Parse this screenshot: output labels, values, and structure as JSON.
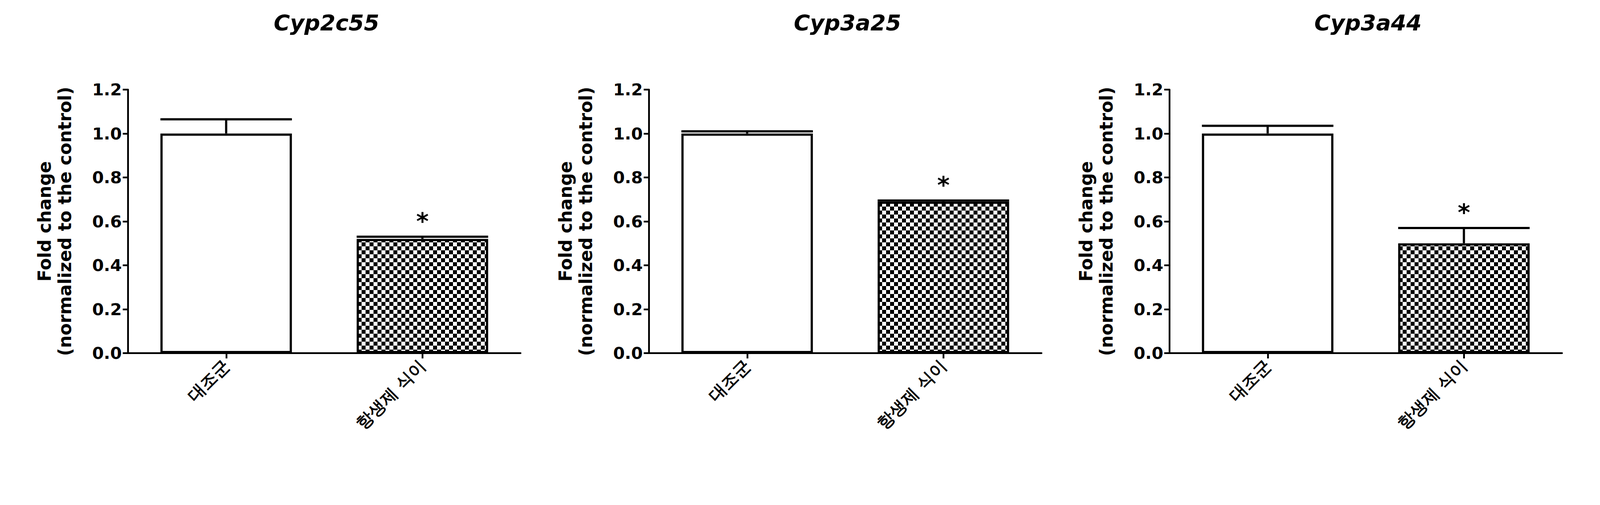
{
  "chart_data": [
    {
      "type": "bar",
      "title": "Cyp2c55",
      "ylabel": "Fold change\n(normalized to the control)",
      "categories": [
        "대조군",
        "항생제 식이"
      ],
      "values": [
        1.0,
        0.52
      ],
      "errors": [
        0.065,
        0.01
      ],
      "colors": [
        "#ffffff",
        "#000000"
      ],
      "ylim": [
        0,
        1.2
      ],
      "yticks": [
        {
          "value": 0,
          "label": "0.0"
        },
        {
          "value": 0.2,
          "label": "0.2"
        },
        {
          "value": 0.4,
          "label": "0.4"
        },
        {
          "value": 0.6,
          "label": "0.6"
        },
        {
          "value": 0.8,
          "label": "0.8"
        },
        {
          "value": 1.0,
          "label": "1.0"
        },
        {
          "value": 1.2,
          "label": "1.2"
        }
      ],
      "grid": false,
      "annotations": [
        {
          "category": "항생제 식이",
          "text": "*"
        }
      ]
    },
    {
      "type": "bar",
      "title": "Cyp3a25",
      "ylabel": "Fold change\n(normalized to the control)",
      "categories": [
        "대조군",
        "항생제 식이"
      ],
      "values": [
        1.0,
        0.69
      ],
      "errors": [
        0.01,
        0.005
      ],
      "colors": [
        "#ffffff",
        "#000000"
      ],
      "ylim": [
        0,
        1.2
      ],
      "yticks": [
        {
          "value": 0,
          "label": "0.0"
        },
        {
          "value": 0.2,
          "label": "0.2"
        },
        {
          "value": 0.4,
          "label": "0.4"
        },
        {
          "value": 0.6,
          "label": "0.6"
        },
        {
          "value": 0.8,
          "label": "0.8"
        },
        {
          "value": 1.0,
          "label": "1.0"
        },
        {
          "value": 1.2,
          "label": "1.2"
        }
      ],
      "grid": false,
      "annotations": [
        {
          "category": "항생제 식이",
          "text": "*"
        }
      ]
    },
    {
      "type": "bar",
      "title": "Cyp3a44",
      "ylabel": "Fold change\n(normalized to the control)",
      "categories": [
        "대조군",
        "항생제 식이"
      ],
      "values": [
        1.0,
        0.5
      ],
      "errors": [
        0.035,
        0.07
      ],
      "colors": [
        "#ffffff",
        "#000000"
      ],
      "ylim": [
        0,
        1.2
      ],
      "yticks": [
        {
          "value": 0,
          "label": "0.0"
        },
        {
          "value": 0.2,
          "label": "0.2"
        },
        {
          "value": 0.4,
          "label": "0.4"
        },
        {
          "value": 0.6,
          "label": "0.6"
        },
        {
          "value": 0.8,
          "label": "0.8"
        },
        {
          "value": 1.0,
          "label": "1.0"
        },
        {
          "value": 1.2,
          "label": "1.2"
        }
      ],
      "grid": false,
      "annotations": [
        {
          "category": "항생제 식이",
          "text": "*"
        }
      ]
    }
  ]
}
